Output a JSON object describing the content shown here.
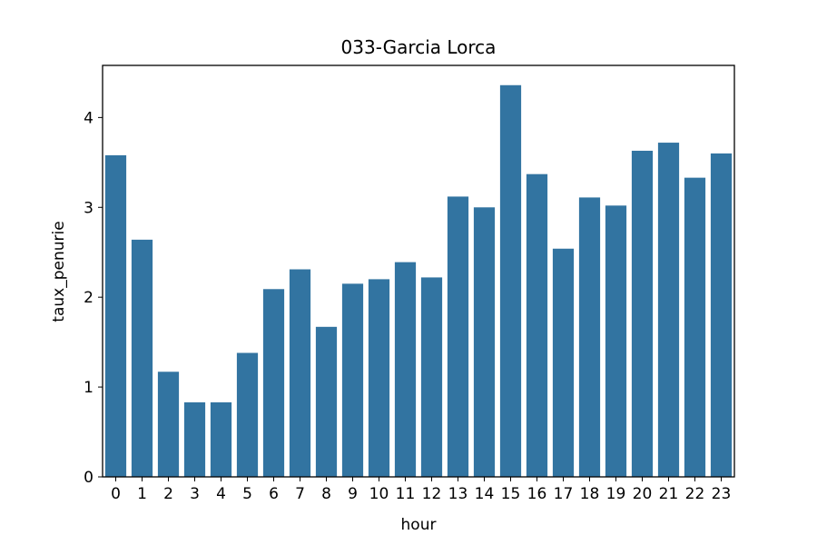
{
  "chart_data": {
    "type": "bar",
    "title": "033-Garcia Lorca",
    "xlabel": "hour",
    "ylabel": "taux_penurie",
    "categories": [
      "0",
      "1",
      "2",
      "3",
      "4",
      "5",
      "6",
      "7",
      "8",
      "9",
      "10",
      "11",
      "12",
      "13",
      "14",
      "15",
      "16",
      "17",
      "18",
      "19",
      "20",
      "21",
      "22",
      "23"
    ],
    "values": [
      3.58,
      2.64,
      1.17,
      0.83,
      0.83,
      1.38,
      2.09,
      2.31,
      1.67,
      2.15,
      2.2,
      2.39,
      2.22,
      3.12,
      3.0,
      4.36,
      3.37,
      2.54,
      3.11,
      3.02,
      3.63,
      3.72,
      3.33,
      3.6
    ],
    "yticks": [
      "0",
      "1",
      "2",
      "3",
      "4"
    ],
    "ylim": [
      0,
      4.58
    ],
    "grid": false,
    "bar_color": "#3274a1"
  }
}
